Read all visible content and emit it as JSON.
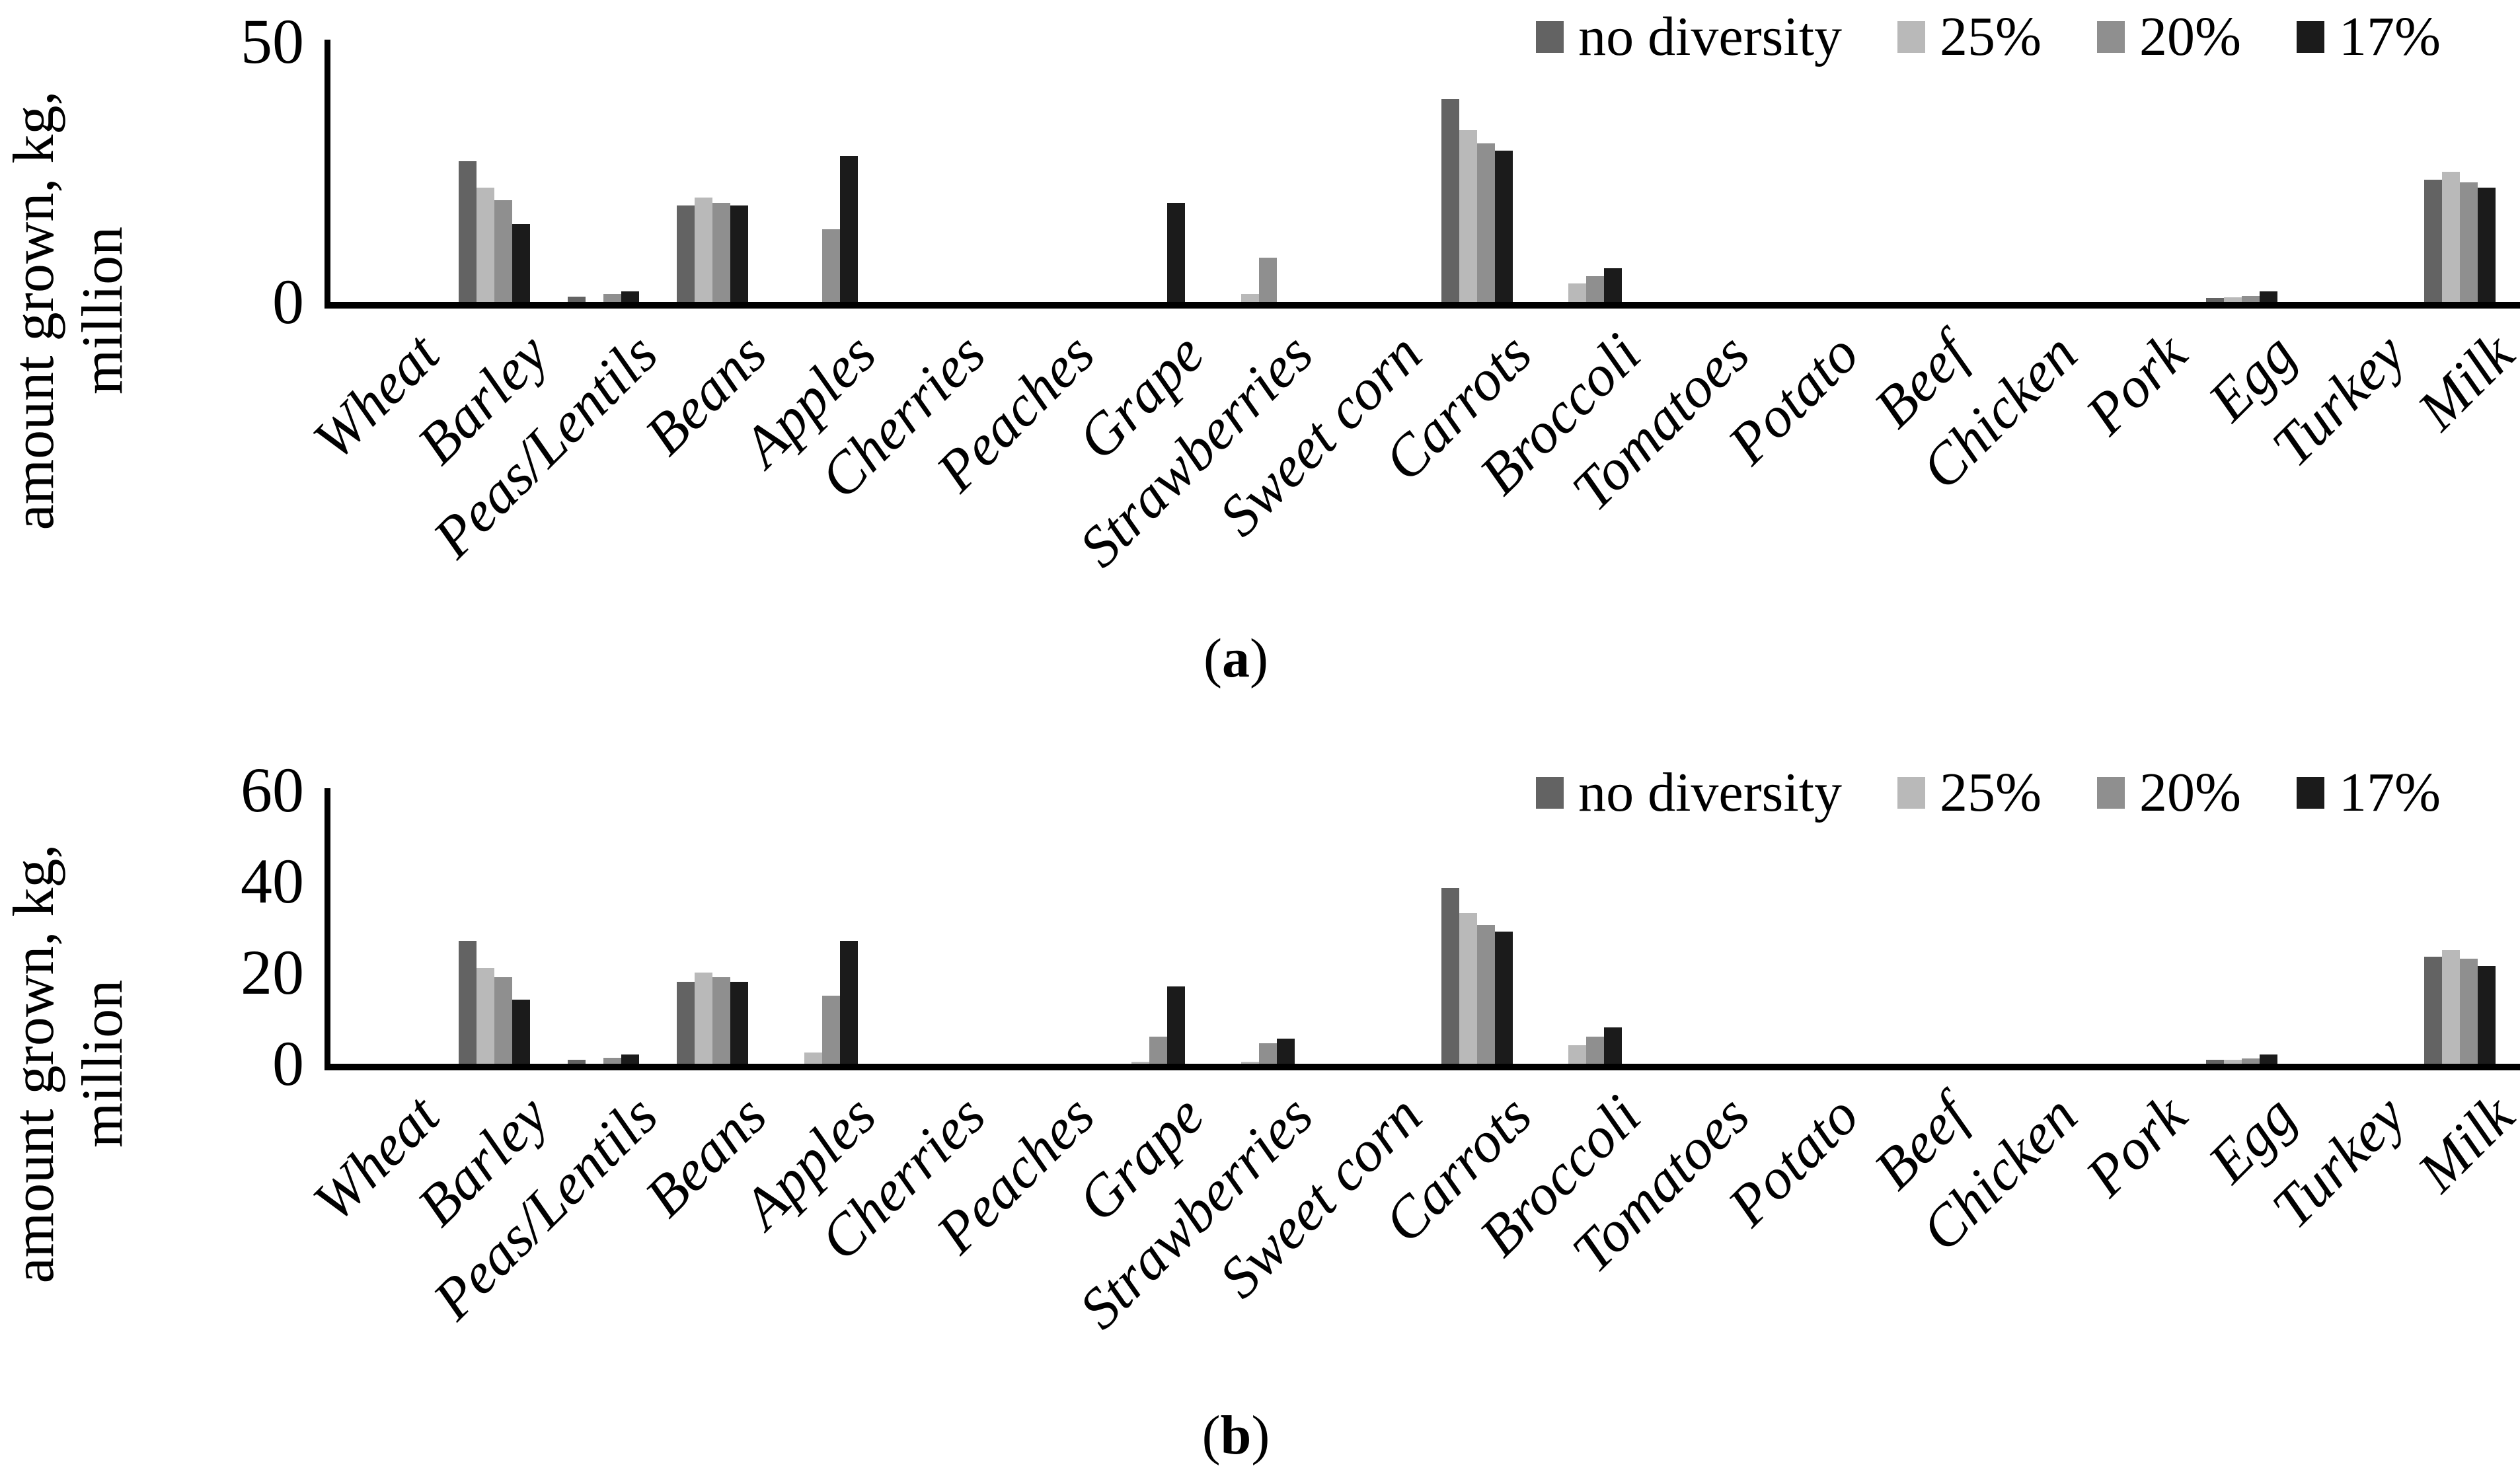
{
  "figure": {
    "y_axis_label_line1": "amount grown, kg,",
    "y_axis_label_line2": "million",
    "background_color": "#ffffff",
    "text_color": "#000000"
  },
  "captions": {
    "a": {
      "pre": "(",
      "letter": "a",
      "post": ")"
    },
    "b": {
      "pre": "(",
      "letter": "b",
      "post": ")"
    }
  },
  "legend": {
    "position": "top-right",
    "items": [
      {
        "label": "no diversity",
        "color": "#636363"
      },
      {
        "label": "25%",
        "color": "#b9b9b9"
      },
      {
        "label": "20%",
        "color": "#8f8f8f"
      },
      {
        "label": "17%",
        "color": "#1b1b1b"
      }
    ]
  },
  "chart_data": [
    {
      "id": "a",
      "type": "bar",
      "title": "",
      "xlabel": "",
      "ylabel": "amount grown, kg, million",
      "ylim": [
        0,
        50
      ],
      "yticks": [
        0,
        50
      ],
      "grid": false,
      "legend_position": "top-right",
      "caption": "(a)",
      "categories": [
        "Wheat",
        "Barley",
        "Peas/Lentils",
        "Beans",
        "Apples",
        "Cherries",
        "Peaches",
        "Grape",
        "Strawberries",
        "Sweet corn",
        "Carrots",
        "Broccoli",
        "Tomatoes",
        "Potato",
        "Beef",
        "Chicken",
        "Pork",
        "Egg",
        "Turkey",
        "Milk"
      ],
      "series": [
        {
          "name": "no diversity",
          "color": "#636363",
          "values": [
            0,
            27,
            1,
            18.5,
            0,
            0,
            0,
            0,
            0,
            0,
            39,
            0,
            0,
            0,
            0,
            0,
            0,
            0.8,
            0,
            23.5
          ]
        },
        {
          "name": "25%",
          "color": "#b9b9b9",
          "values": [
            0,
            22,
            0,
            20,
            0,
            0,
            0,
            0,
            1.5,
            0,
            33,
            3.5,
            0,
            0,
            0,
            0,
            0,
            0.9,
            0,
            25
          ]
        },
        {
          "name": "20%",
          "color": "#8f8f8f",
          "values": [
            0,
            19.5,
            1.5,
            19,
            14,
            0,
            0,
            0,
            8.5,
            0,
            30.5,
            5,
            0,
            0,
            0,
            0,
            0,
            1.2,
            0,
            23
          ]
        },
        {
          "name": "17%",
          "color": "#1b1b1b",
          "values": [
            0,
            15,
            2,
            18.5,
            28,
            0,
            0,
            19,
            0,
            0,
            29,
            6.5,
            0,
            0,
            0,
            0,
            0,
            2,
            0,
            22
          ]
        }
      ]
    },
    {
      "id": "b",
      "type": "bar",
      "title": "",
      "xlabel": "",
      "ylabel": "amount grown, kg, million",
      "ylim": [
        0,
        60
      ],
      "yticks": [
        0,
        20,
        40,
        60
      ],
      "grid": false,
      "legend_position": "top-right",
      "caption": "(b)",
      "categories": [
        "Wheat",
        "Barley",
        "Peas/Lentils",
        "Beans",
        "Apples",
        "Cherries",
        "Peaches",
        "Grape",
        "Strawberries",
        "Sweet corn",
        "Carrots",
        "Broccoli",
        "Tomatoes",
        "Potato",
        "Beef",
        "Chicken",
        "Pork",
        "Egg",
        "Turkey",
        "Milk"
      ],
      "series": [
        {
          "name": "no diversity",
          "color": "#636363",
          "values": [
            0,
            27,
            0.8,
            18,
            0,
            0,
            0,
            0,
            0,
            0,
            38.5,
            0,
            0,
            0,
            0,
            0,
            0,
            0.8,
            0,
            23.5
          ]
        },
        {
          "name": "25%",
          "color": "#b9b9b9",
          "values": [
            0,
            21,
            0,
            20,
            2.5,
            0,
            0,
            0.5,
            0.5,
            0,
            33,
            4,
            0,
            0,
            0,
            0,
            0,
            0.9,
            0,
            25
          ]
        },
        {
          "name": "20%",
          "color": "#8f8f8f",
          "values": [
            0,
            19,
            1.3,
            19,
            15,
            0,
            0,
            6,
            4.5,
            0,
            30.5,
            6,
            0,
            0,
            0,
            0,
            0,
            1.2,
            0,
            23
          ]
        },
        {
          "name": "17%",
          "color": "#1b1b1b",
          "values": [
            0,
            14,
            2,
            18,
            27,
            0,
            0,
            17,
            5.5,
            0,
            29,
            8,
            0,
            0,
            0,
            0,
            0,
            2,
            0,
            21.5
          ]
        }
      ]
    }
  ]
}
